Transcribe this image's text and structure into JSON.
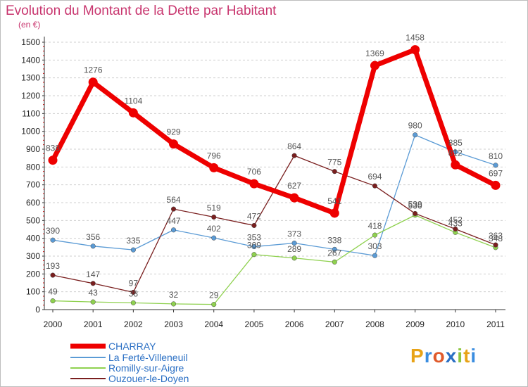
{
  "chart_data": {
    "type": "line",
    "title": "Evolution du Montant de la Dette par Habitant",
    "subtitle": "(en €)",
    "x": [
      "2000",
      "2001",
      "2002",
      "2003",
      "2004",
      "2005",
      "2006",
      "2007",
      "2008",
      "2009",
      "2010",
      "2011"
    ],
    "y_ticks": [
      0,
      100,
      200,
      300,
      400,
      500,
      600,
      700,
      800,
      900,
      1000,
      1100,
      1200,
      1300,
      1400,
      1500
    ],
    "ylim": [
      0,
      1500
    ],
    "grid": "horizontal dashed",
    "legend_position": "bottom-left",
    "series": [
      {
        "name": "CHARRAY",
        "color": "#ee0000",
        "values": [
          838,
          1276,
          1104,
          929,
          796,
          706,
          627,
          541,
          1369,
          1458,
          812,
          697
        ],
        "labels": [
          "838",
          "1276",
          "1104",
          "929",
          "796",
          "706",
          "627",
          "541",
          "1369",
          "1458",
          "812",
          "697"
        ]
      },
      {
        "name": "La Ferté-Villeneuil",
        "color": "#5b9bd5",
        "values": [
          390,
          356,
          335,
          447,
          402,
          353,
          373,
          338,
          303,
          980,
          885,
          810
        ],
        "labels": [
          "390",
          "356",
          "335",
          "447",
          "402",
          "353",
          "373",
          "338",
          "303",
          "980",
          "885",
          "810"
        ]
      },
      {
        "name": "Romilly-sur-Aigre",
        "color": "#8fd14f",
        "values": [
          49,
          43,
          38,
          32,
          29,
          309,
          289,
          267,
          418,
          530,
          433,
          348
        ],
        "labels": [
          "49",
          "43",
          "38",
          "32",
          "29",
          "309",
          "289",
          "267",
          "418",
          "530",
          "433",
          "348"
        ]
      },
      {
        "name": "Ouzouer-le-Doyen",
        "color": "#7a1f1f",
        "values": [
          193,
          147,
          97,
          564,
          519,
          472,
          864,
          775,
          694,
          539,
          452,
          363
        ],
        "labels": [
          "193",
          "147",
          "97",
          "564",
          "519",
          "472",
          "864",
          "775",
          "694",
          "539",
          "452",
          "363"
        ]
      }
    ]
  },
  "logo": {
    "text": "Proxiti",
    "letters": [
      {
        "ch": "P",
        "color": "#e8a317"
      },
      {
        "ch": "r",
        "color": "#3a8de0"
      },
      {
        "ch": "o",
        "color": "#e05a2b"
      },
      {
        "ch": "x",
        "color": "#2a6fc4"
      },
      {
        "ch": "i",
        "color": "#8cc63f"
      },
      {
        "ch": "t",
        "color": "#e8a317"
      },
      {
        "ch": "i",
        "color": "#3a8de0"
      }
    ]
  }
}
